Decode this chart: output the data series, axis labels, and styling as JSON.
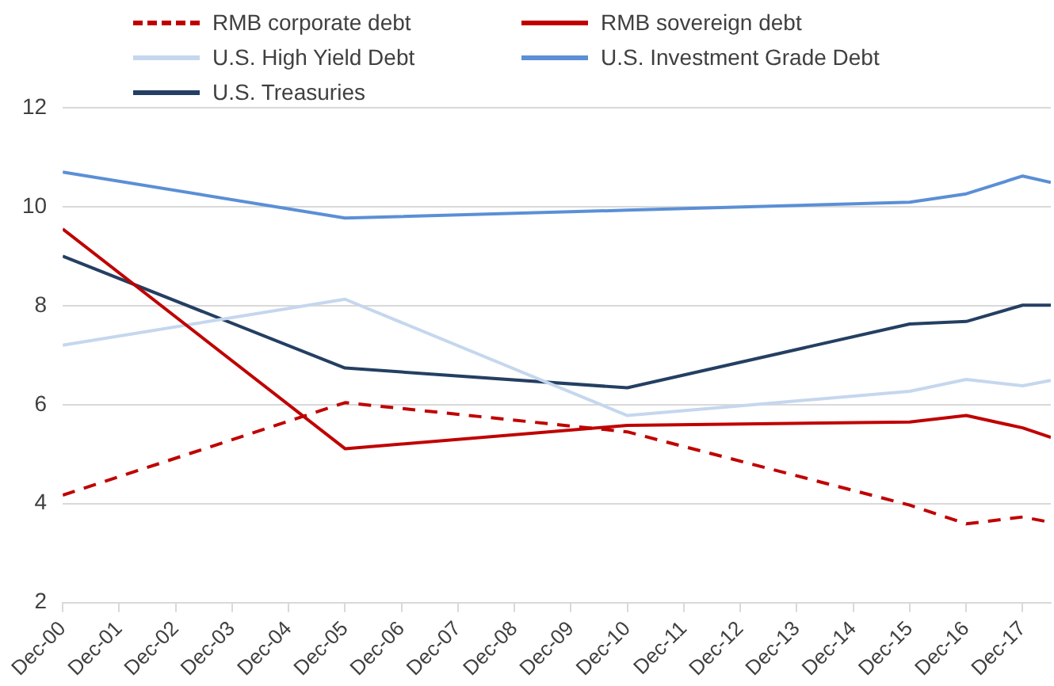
{
  "chart_data": {
    "type": "line",
    "x": [
      "2000-12",
      "2005-12",
      "2010-12",
      "2015-12",
      "2016-12",
      "2017-12",
      "2018-06"
    ],
    "xlim": [
      "2000-12",
      "2018-06"
    ],
    "xticks": [
      {
        "value": "2000-12",
        "label": "Dec-00"
      },
      {
        "value": "2001-12",
        "label": "Dec-01"
      },
      {
        "value": "2002-12",
        "label": "Dec-02"
      },
      {
        "value": "2003-12",
        "label": "Dec-03"
      },
      {
        "value": "2004-12",
        "label": "Dec-04"
      },
      {
        "value": "2005-12",
        "label": "Dec-05"
      },
      {
        "value": "2006-12",
        "label": "Dec-06"
      },
      {
        "value": "2007-12",
        "label": "Dec-07"
      },
      {
        "value": "2008-12",
        "label": "Dec-08"
      },
      {
        "value": "2009-12",
        "label": "Dec-09"
      },
      {
        "value": "2010-12",
        "label": "Dec-10"
      },
      {
        "value": "2011-12",
        "label": "Dec-11"
      },
      {
        "value": "2012-12",
        "label": "Dec-12"
      },
      {
        "value": "2013-12",
        "label": "Dec-13"
      },
      {
        "value": "2014-12",
        "label": "Dec-14"
      },
      {
        "value": "2015-12",
        "label": "Dec-15"
      },
      {
        "value": "2016-12",
        "label": "Dec-16"
      },
      {
        "value": "2017-12",
        "label": "Dec-17"
      }
    ],
    "ylim": [
      2,
      12
    ],
    "yticks": [
      2,
      4,
      6,
      8,
      10,
      12
    ],
    "grid": "y",
    "legend": "top",
    "marker": "none",
    "series": [
      {
        "name": "RMB corporate debt",
        "color": "#c00000",
        "line_style": "dashed",
        "values": [
          4.17,
          6.04,
          5.45,
          3.97,
          3.59,
          3.73,
          3.62
        ]
      },
      {
        "name": "RMB sovereign debt",
        "color": "#c00000",
        "line_style": "solid",
        "values": [
          9.55,
          5.11,
          5.58,
          5.65,
          5.78,
          5.53,
          5.34
        ]
      },
      {
        "name": "U.S. High Yield Debt",
        "color": "#c5d7ee",
        "line_style": "solid",
        "values": [
          7.2,
          8.13,
          5.78,
          6.27,
          6.51,
          6.38,
          6.49
        ]
      },
      {
        "name": "U.S. Investment Grade Debt",
        "color": "#5b8fd6",
        "line_style": "solid",
        "values": [
          10.7,
          9.77,
          9.93,
          10.09,
          10.26,
          10.62,
          10.49
        ]
      },
      {
        "name": "U.S. Treasuries",
        "color": "#243f62",
        "line_style": "solid",
        "values": [
          9.0,
          6.74,
          6.34,
          7.63,
          7.68,
          8.01,
          8.01
        ]
      }
    ]
  }
}
